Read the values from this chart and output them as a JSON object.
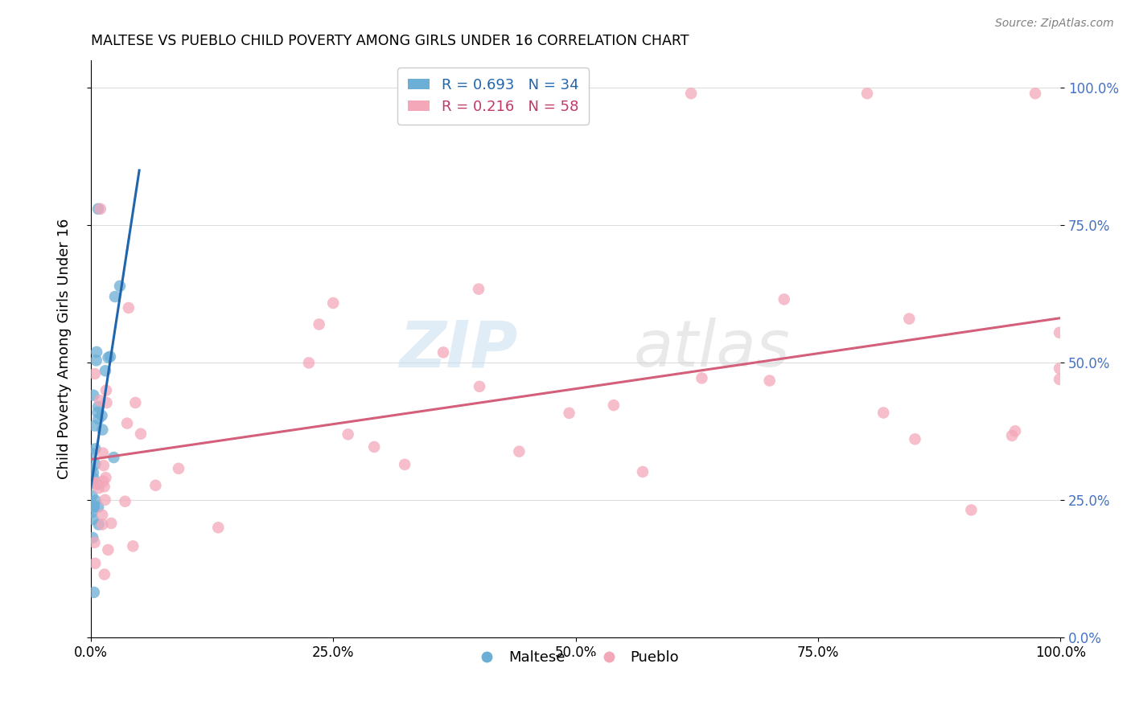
{
  "title": "MALTESE VS PUEBLO CHILD POVERTY AMONG GIRLS UNDER 16 CORRELATION CHART",
  "source": "Source: ZipAtlas.com",
  "ylabel": "Child Poverty Among Girls Under 16",
  "xlim": [
    0,
    1.0
  ],
  "ylim": [
    0,
    1.05
  ],
  "maltese_R": 0.693,
  "maltese_N": 34,
  "pueblo_R": 0.216,
  "pueblo_N": 58,
  "maltese_color": "#6baed6",
  "pueblo_color": "#f4a7b9",
  "trendline_maltese_color": "#2166ac",
  "trendline_pueblo_color": "#d45f7a",
  "watermark_zip": "ZIP",
  "watermark_atlas": "atlas",
  "background_color": "#ffffff",
  "grid_color": "#dddddd"
}
